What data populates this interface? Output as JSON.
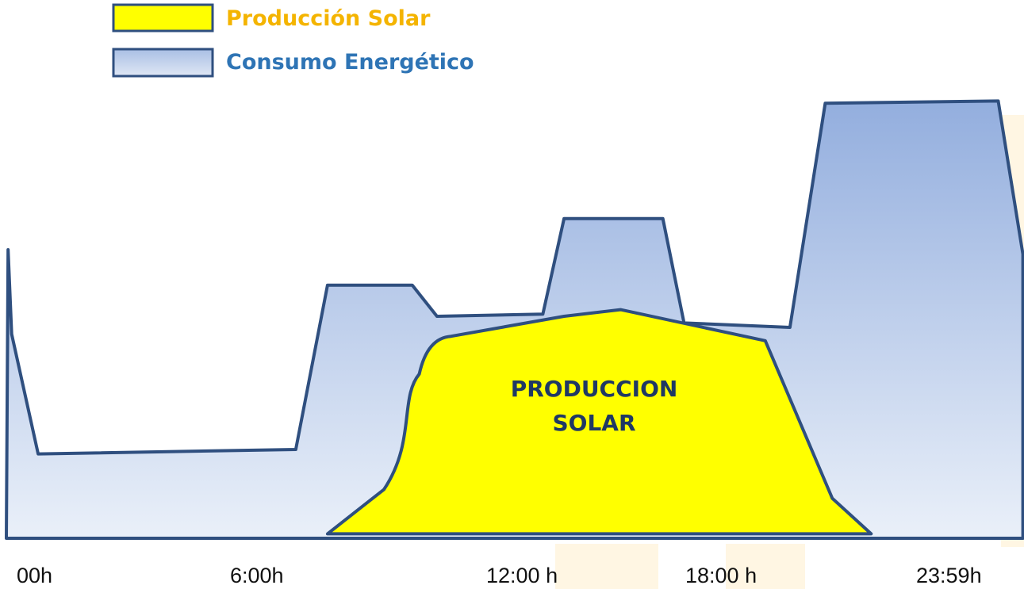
{
  "chart_data": {
    "type": "area",
    "legend": [
      {
        "label": "Producción Solar",
        "fill": "#ffff00",
        "text_color": "#f4b400"
      },
      {
        "label": "Consumo Energético",
        "fill": "#b4c7e7",
        "text_color": "#2e74b5"
      }
    ],
    "x_ticks": [
      "00h",
      "6:00h",
      "12:00 h",
      "18:00 h",
      "23:59h"
    ],
    "center_label": [
      "PRODUCCION",
      "SOLAR"
    ],
    "series": [
      {
        "name": "Consumo Energético",
        "points": [
          [
            0.0,
            0.0
          ],
          [
            0.05,
            65.0
          ],
          [
            0.15,
            46.0
          ],
          [
            0.9,
            19.0
          ],
          [
            8.2,
            20.0
          ],
          [
            9.1,
            57.0
          ],
          [
            11.5,
            57.0
          ],
          [
            12.2,
            50.0
          ],
          [
            15.2,
            50.5
          ],
          [
            15.8,
            72.0
          ],
          [
            18.6,
            72.0
          ],
          [
            19.2,
            48.5
          ],
          [
            22.2,
            47.5
          ],
          [
            23.2,
            98.0
          ],
          [
            28.1,
            98.5
          ],
          [
            28.8,
            64.0
          ],
          [
            28.8,
            0.0
          ]
        ]
      },
      {
        "name": "Producción Solar",
        "points": [
          [
            9.1,
            1.0
          ],
          [
            10.7,
            11.0
          ],
          [
            11.7,
            37.0
          ],
          [
            12.6,
            45.5
          ],
          [
            15.8,
            50.0
          ],
          [
            17.4,
            51.5
          ],
          [
            21.5,
            44.5
          ],
          [
            23.4,
            9.0
          ],
          [
            24.5,
            1.0
          ]
        ]
      }
    ],
    "colors": {
      "stroke": "#2f4f7f",
      "consumo_top": "#93aede",
      "consumo_bottom": "#eaf0f9",
      "solar": "#ffff00"
    }
  }
}
